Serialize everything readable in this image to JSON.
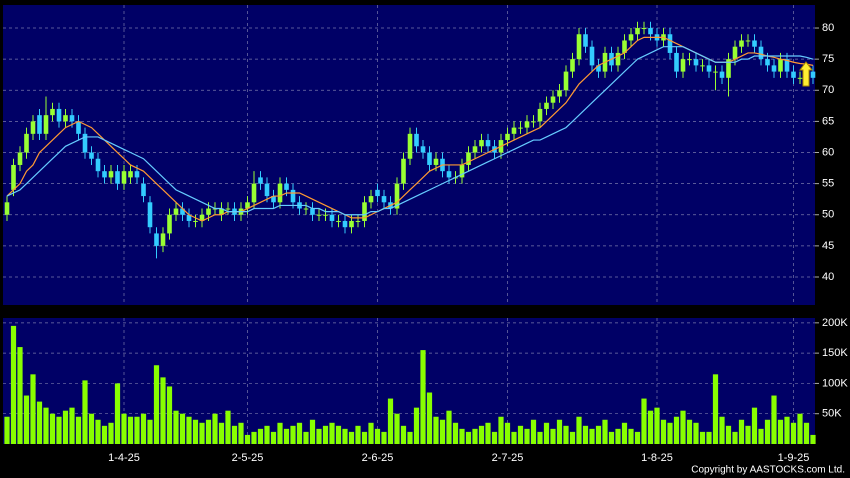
{
  "chart_data": [
    {
      "type": "candlestick",
      "up_color": "#99ff33",
      "down_color": "#33ccff",
      "open": [
        50,
        54,
        58,
        60,
        63,
        66,
        63,
        66,
        67,
        65,
        66,
        65,
        63,
        60,
        59,
        57,
        56,
        57,
        55,
        56,
        57,
        55,
        52,
        47,
        45,
        47,
        50,
        51,
        50,
        49,
        49,
        50,
        51,
        50,
        51,
        51,
        50,
        51,
        52,
        56,
        55,
        53,
        52,
        55,
        54,
        52,
        51,
        51,
        50,
        50,
        50,
        49,
        49,
        48,
        49,
        49,
        52,
        54,
        53,
        52,
        51,
        55,
        59,
        63,
        61,
        60,
        58,
        59,
        57,
        56,
        56,
        58,
        60,
        61,
        62,
        61,
        60,
        62,
        63,
        64,
        64,
        65,
        65,
        67,
        68,
        69,
        70,
        73,
        75,
        79,
        77,
        74,
        73,
        76,
        74,
        76,
        78,
        79,
        80,
        80,
        79,
        78,
        79,
        76,
        73,
        75,
        75,
        74,
        74,
        73,
        73,
        72,
        75,
        77,
        78,
        78,
        77,
        75,
        74,
        73,
        75,
        73,
        72,
        72,
        73
      ],
      "high": [
        53,
        59,
        61,
        64,
        66,
        67,
        69,
        68,
        68,
        67,
        67,
        66,
        64,
        61,
        60,
        58,
        58,
        58,
        58,
        58,
        58,
        56,
        53,
        48,
        48,
        51,
        52,
        52,
        51,
        50,
        51,
        52,
        52,
        52,
        52,
        52,
        52,
        53,
        57,
        57,
        56,
        54,
        56,
        56,
        55,
        53,
        52,
        52,
        51,
        51,
        51,
        50,
        50,
        50,
        50,
        53,
        54,
        55,
        54,
        53,
        56,
        60,
        64,
        64,
        62,
        61,
        60,
        60,
        58,
        57,
        59,
        61,
        62,
        63,
        63,
        62,
        63,
        64,
        65,
        65,
        66,
        66,
        68,
        69,
        70,
        71,
        74,
        76,
        80,
        80,
        78,
        75,
        77,
        77,
        77,
        79,
        80,
        81,
        81,
        81,
        80,
        80,
        80,
        77,
        76,
        76,
        76,
        75,
        75,
        74,
        74,
        76,
        78,
        79,
        79,
        79,
        78,
        76,
        75,
        76,
        76,
        74,
        73,
        74,
        74
      ],
      "low": [
        49,
        53,
        57,
        59,
        62,
        62,
        62,
        65,
        64,
        64,
        64,
        62,
        59,
        58,
        56,
        55,
        55,
        54,
        54,
        55,
        55,
        52,
        47,
        43,
        44,
        46,
        49,
        49,
        48,
        48,
        48,
        49,
        50,
        49,
        50,
        49,
        49,
        50,
        51,
        54,
        52,
        51,
        51,
        53,
        51,
        50,
        50,
        49,
        49,
        49,
        48,
        48,
        47,
        47,
        48,
        48,
        51,
        52,
        51,
        50,
        50,
        54,
        58,
        60,
        59,
        57,
        57,
        56,
        55,
        55,
        55,
        57,
        59,
        60,
        60,
        59,
        59,
        61,
        62,
        63,
        63,
        64,
        64,
        66,
        67,
        68,
        69,
        72,
        74,
        76,
        73,
        72,
        72,
        73,
        73,
        75,
        77,
        78,
        79,
        78,
        77,
        77,
        75,
        72,
        72,
        74,
        73,
        73,
        72,
        70,
        71,
        69,
        74,
        76,
        77,
        76,
        74,
        73,
        72,
        72,
        72,
        71,
        71,
        71,
        71
      ],
      "close": [
        52,
        58,
        60,
        63,
        65,
        63,
        66,
        67,
        65,
        66,
        65,
        63,
        60,
        59,
        57,
        56,
        57,
        55,
        57,
        57,
        56,
        53,
        48,
        45,
        47,
        50,
        51,
        50,
        49,
        49,
        50,
        51,
        51,
        51,
        51,
        50,
        51,
        52,
        55,
        55,
        53,
        52,
        55,
        54,
        52,
        51,
        51,
        50,
        50,
        50,
        49,
        49,
        48,
        49,
        49,
        52,
        53,
        53,
        52,
        51,
        55,
        59,
        63,
        61,
        60,
        58,
        59,
        57,
        56,
        56,
        58,
        60,
        61,
        62,
        61,
        60,
        62,
        63,
        64,
        64,
        65,
        65,
        67,
        68,
        69,
        70,
        73,
        75,
        79,
        77,
        74,
        73,
        76,
        74,
        76,
        78,
        79,
        80,
        80,
        79,
        78,
        79,
        76,
        73,
        75,
        75,
        74,
        74,
        73,
        73,
        72,
        75,
        77,
        78,
        78,
        77,
        75,
        74,
        73,
        75,
        73,
        72,
        72,
        73,
        72
      ],
      "lines": [
        {
          "color": "#ff9933",
          "values": [
            53,
            54,
            55,
            57,
            58,
            60,
            61,
            62,
            63,
            64,
            64.5,
            65,
            64.5,
            64,
            63,
            62,
            61,
            60,
            59,
            58,
            57.5,
            57,
            56,
            55,
            54,
            53,
            52,
            51,
            50,
            49.5,
            49,
            49.5,
            50,
            50,
            50.5,
            50.5,
            50.5,
            51,
            51.5,
            52,
            52.5,
            53,
            53,
            53.5,
            53.5,
            53.5,
            53,
            52.5,
            52,
            51.5,
            51,
            50.5,
            50,
            49.5,
            49.5,
            49.5,
            50,
            50.5,
            51,
            51.5,
            52,
            53,
            54,
            55,
            56,
            57,
            57.5,
            58,
            58,
            58,
            58,
            58.5,
            59,
            59.5,
            60,
            60.5,
            61,
            61.5,
            62,
            62.5,
            63,
            63.5,
            64,
            65,
            66,
            67,
            68,
            69.5,
            71,
            72,
            73,
            74,
            74.5,
            75,
            75.5,
            76,
            77,
            78,
            78.5,
            78.5,
            78.5,
            78.5,
            78,
            77.5,
            77,
            76.5,
            76,
            75.5,
            75,
            74.5,
            74.5,
            74.5,
            75,
            75.5,
            76,
            76,
            75.8,
            75.5,
            75.3,
            75,
            74.8,
            74.5,
            74.3,
            74.2,
            74
          ]
        },
        {
          "color": "#66ccff",
          "values": [
            53,
            53.5,
            54,
            55,
            56,
            57,
            58,
            59,
            60,
            61,
            61.5,
            62,
            62.5,
            62.5,
            62.5,
            62,
            61.5,
            61,
            60.5,
            60,
            59.5,
            59,
            58,
            57,
            56,
            55,
            54,
            53.5,
            53,
            52.5,
            52,
            51.5,
            51,
            51,
            50.5,
            50.5,
            50.5,
            50.5,
            51,
            51,
            51,
            51,
            51.5,
            51.5,
            51.5,
            51.5,
            51.5,
            51,
            51,
            50.5,
            50.5,
            50.5,
            50,
            50,
            50,
            50,
            50.5,
            50.5,
            51,
            51,
            51.5,
            52,
            52.5,
            53,
            53.5,
            54,
            54.5,
            55,
            55.5,
            56,
            56.5,
            57,
            57.5,
            58,
            58.5,
            59,
            59.5,
            60,
            60.5,
            61,
            61.5,
            62,
            62,
            62.5,
            63,
            63.5,
            64,
            65,
            66,
            67,
            68,
            69,
            70,
            71,
            72,
            73,
            74,
            75,
            75.5,
            76,
            76.5,
            77,
            77,
            77,
            77,
            76.5,
            76,
            75.5,
            75,
            74.5,
            74.5,
            74.5,
            74.5,
            75,
            75,
            75.5,
            75.5,
            75.5,
            75.5,
            75.5,
            75.5,
            75.5,
            75.5,
            75.3,
            75
          ]
        }
      ],
      "ylim": [
        35.5,
        83.7
      ],
      "yticks": [
        40,
        45,
        50,
        55,
        60,
        65,
        70,
        75,
        80
      ],
      "grid": true
    },
    {
      "type": "bar",
      "color": "#88ff00",
      "categories": [
        null,
        null,
        null,
        null,
        null,
        null,
        null,
        null,
        null,
        null,
        null,
        null,
        null,
        null,
        null,
        null,
        null,
        null,
        "1-4-25",
        null,
        null,
        null,
        null,
        null,
        null,
        null,
        null,
        null,
        null,
        null,
        null,
        null,
        null,
        null,
        null,
        null,
        null,
        "2-5-25",
        null,
        null,
        null,
        null,
        null,
        null,
        null,
        null,
        null,
        null,
        null,
        null,
        null,
        null,
        null,
        null,
        null,
        null,
        null,
        "2-6-25",
        null,
        null,
        null,
        null,
        null,
        null,
        null,
        null,
        null,
        null,
        null,
        null,
        null,
        null,
        null,
        null,
        null,
        null,
        null,
        "2-7-25",
        null,
        null,
        null,
        null,
        null,
        null,
        null,
        null,
        null,
        null,
        null,
        null,
        null,
        null,
        null,
        null,
        null,
        null,
        null,
        null,
        null,
        null,
        "1-8-25",
        null,
        null,
        null,
        null,
        null,
        null,
        null,
        null,
        null,
        null,
        null,
        null,
        null,
        null,
        null,
        null,
        null,
        null,
        null,
        null,
        "1-9-25",
        null,
        null,
        null
      ],
      "values": [
        45000,
        195000,
        160000,
        80000,
        115000,
        70000,
        60000,
        50000,
        45000,
        55000,
        60000,
        45000,
        105000,
        50000,
        40000,
        30000,
        35000,
        100000,
        50000,
        45000,
        45000,
        50000,
        40000,
        130000,
        110000,
        95000,
        55000,
        50000,
        45000,
        40000,
        35000,
        40000,
        50000,
        35000,
        55000,
        30000,
        35000,
        15000,
        20000,
        25000,
        30000,
        20000,
        35000,
        25000,
        30000,
        35000,
        20000,
        40000,
        25000,
        30000,
        35000,
        30000,
        25000,
        20000,
        30000,
        20000,
        35000,
        25000,
        20000,
        75000,
        50000,
        30000,
        20000,
        60000,
        155000,
        85000,
        45000,
        40000,
        55000,
        35000,
        25000,
        20000,
        25000,
        30000,
        35000,
        20000,
        45000,
        35000,
        20000,
        30000,
        25000,
        40000,
        20000,
        35000,
        25000,
        40000,
        30000,
        20000,
        45000,
        30000,
        25000,
        30000,
        40000,
        20000,
        25000,
        35000,
        25000,
        20000,
        75000,
        55000,
        60000,
        40000,
        35000,
        45000,
        55000,
        40000,
        35000,
        20000,
        20000,
        115000,
        45000,
        30000,
        20000,
        40000,
        30000,
        60000,
        25000,
        40000,
        80000,
        40000,
        45000,
        35000,
        50000,
        35000,
        15000
      ],
      "ylim": [
        0,
        208000
      ],
      "yticks": [
        {
          "value": 50000,
          "label": "50K"
        },
        {
          "value": 100000,
          "label": "100K"
        },
        {
          "value": 150000,
          "label": "150K"
        },
        {
          "value": 200000,
          "label": "200K"
        }
      ],
      "grid": true
    }
  ],
  "copyright": "Copyright by AASTOCKS.com Ltd."
}
